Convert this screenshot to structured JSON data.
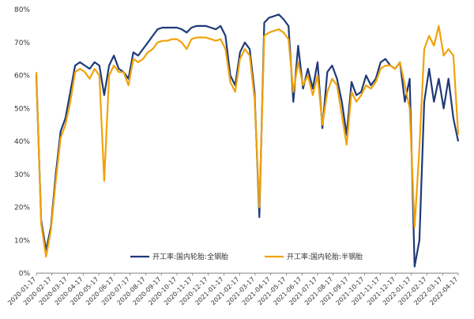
{
  "chart_data": {
    "type": "line",
    "xlabel": "",
    "ylabel": "",
    "ylim": [
      0,
      80
    ],
    "y_unit": "%",
    "grid": false,
    "legend_position": "bottom-center-inside",
    "x_tick_labels": [
      "2020-01-17",
      "2020-02-17",
      "2020-03-17",
      "2020-04-17",
      "2020-05-17",
      "2020-06-17",
      "2020-07-17",
      "2020-08-17",
      "2020-09-17",
      "2020-10-17",
      "2020-11-17",
      "2020-12-17",
      "2021-01-17",
      "2021-02-17",
      "2021-03-17",
      "2021-04-17",
      "2021-05-17",
      "2021-06-17",
      "2021-07-17",
      "2021-08-17",
      "2021-09-17",
      "2021-10-17",
      "2021-11-17",
      "2021-12-17",
      "2022-01-17",
      "2022-02-17",
      "2022-03-17",
      "2022-04-17"
    ],
    "y_tick_labels": [
      "0%",
      "10%",
      "20%",
      "30%",
      "40%",
      "50%",
      "60%",
      "70%",
      "80%"
    ],
    "series": [
      {
        "name": "开工率:国内轮胎:全钢胎",
        "color": "#1f3a7a",
        "values": [
          60,
          16,
          7,
          14,
          30,
          43,
          47,
          55,
          63,
          64,
          63,
          62,
          64,
          63,
          54,
          63,
          66,
          62,
          61,
          59,
          67,
          66,
          68,
          70,
          72,
          74,
          74.5,
          74.5,
          74.5,
          74.5,
          74,
          73,
          74.5,
          75,
          75,
          75,
          74.5,
          74,
          75,
          72,
          60,
          57,
          67,
          70,
          68,
          55,
          17,
          76,
          77.5,
          78,
          78.5,
          77,
          75,
          52,
          69,
          56,
          62,
          56,
          64,
          44,
          61,
          63,
          59,
          52,
          42,
          58,
          54,
          55,
          60,
          57,
          59,
          64,
          65,
          63,
          62,
          64,
          52,
          59,
          2,
          10,
          52,
          62,
          52,
          59,
          50,
          59,
          47,
          40
        ]
      },
      {
        "name": "开工率:国内轮胎:半钢胎",
        "color": "#f0a30a",
        "values": [
          61,
          15,
          5,
          13,
          28,
          41,
          45,
          52,
          61,
          62,
          61,
          59,
          62,
          60,
          28,
          60,
          63,
          61,
          61,
          57,
          65,
          64,
          65,
          67,
          68,
          70,
          70.5,
          70.5,
          71,
          71,
          70,
          68,
          71,
          71.5,
          71.5,
          71.5,
          71,
          70.5,
          71,
          68,
          58,
          55,
          65,
          68,
          66,
          53,
          20,
          72,
          73,
          73.5,
          74,
          73,
          71,
          55,
          64,
          57,
          60,
          54,
          60,
          45,
          55,
          59,
          57,
          48,
          39,
          55,
          52,
          54,
          57,
          56,
          58,
          62,
          63,
          63,
          62,
          64,
          57,
          50,
          14,
          38,
          68,
          72,
          69,
          75,
          66,
          68,
          66,
          42
        ]
      }
    ]
  }
}
